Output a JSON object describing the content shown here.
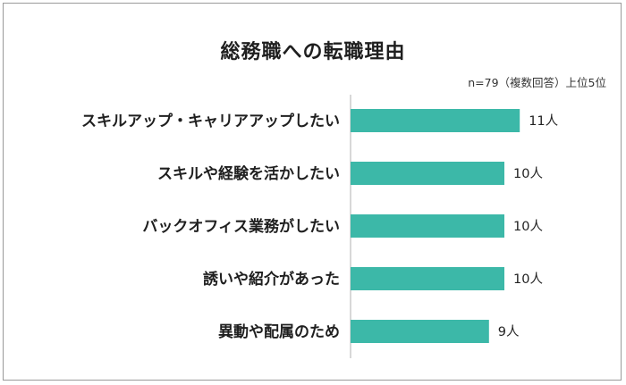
{
  "chart_data": {
    "type": "bar",
    "orientation": "horizontal",
    "title": "総務職への転職理由",
    "note": "n=79（複数回答）上位5位",
    "categories": [
      "スキルアップ・キャリアアップしたい",
      "スキルや経験を活かしたい",
      "バックオフィス業務がしたい",
      "誘いや紹介があった",
      "異動や配属のため"
    ],
    "values": [
      11,
      10,
      10,
      10,
      9
    ],
    "value_labels": [
      "11人",
      "10人",
      "10人",
      "10人",
      "9人"
    ],
    "bar_color": "#3cb8a8",
    "axis_color": "#bdbdbd",
    "xlim": [
      0,
      18
    ],
    "grid": false
  }
}
